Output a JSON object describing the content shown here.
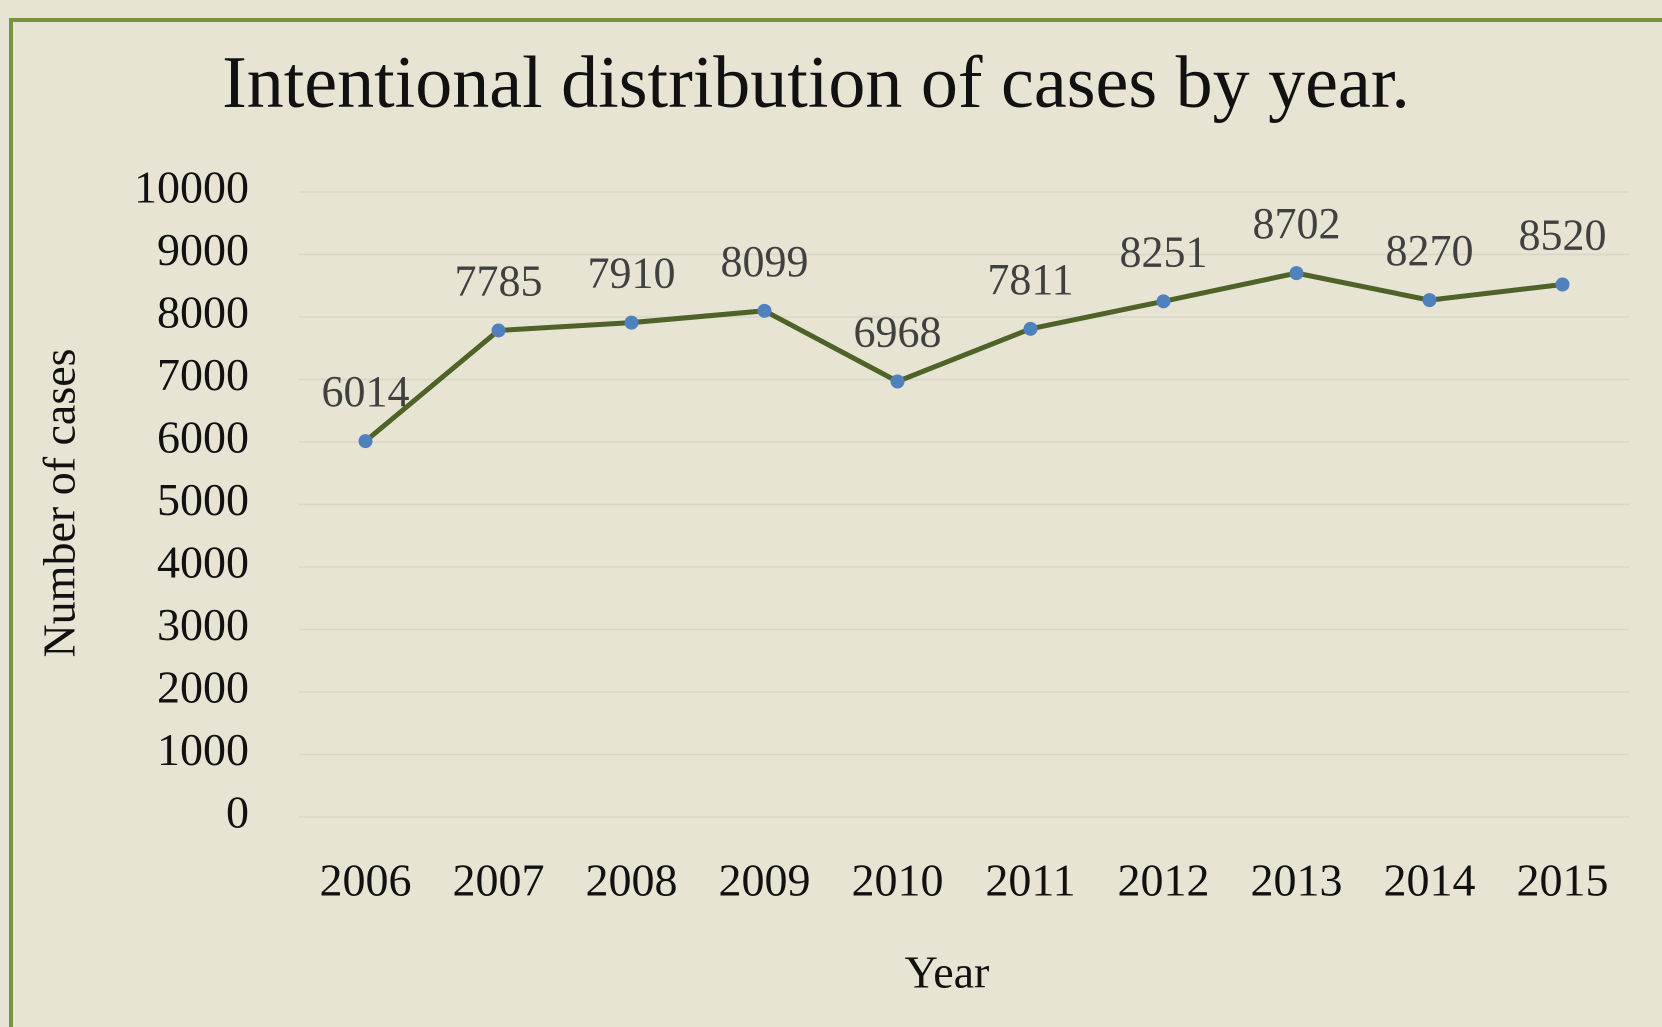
{
  "chart_data": {
    "type": "line",
    "title": "Intentional distribution of cases by year.",
    "x_label": "Year",
    "y_label": "Number of cases",
    "categories": [
      "2006",
      "2007",
      "2008",
      "2009",
      "2010",
      "2011",
      "2012",
      "2013",
      "2014",
      "2015"
    ],
    "series": [
      {
        "name": "Number of cases",
        "color": "#4f6228",
        "marker_color": "#4f81bd",
        "values": [
          6014,
          7785,
          7910,
          8099,
          6968,
          7811,
          8251,
          8702,
          8270,
          8520
        ]
      }
    ],
    "ylim": [
      0,
      10000
    ],
    "yticks": [
      0,
      1000,
      2000,
      3000,
      4000,
      5000,
      6000,
      7000,
      8000,
      9000,
      10000
    ],
    "grid": true
  }
}
